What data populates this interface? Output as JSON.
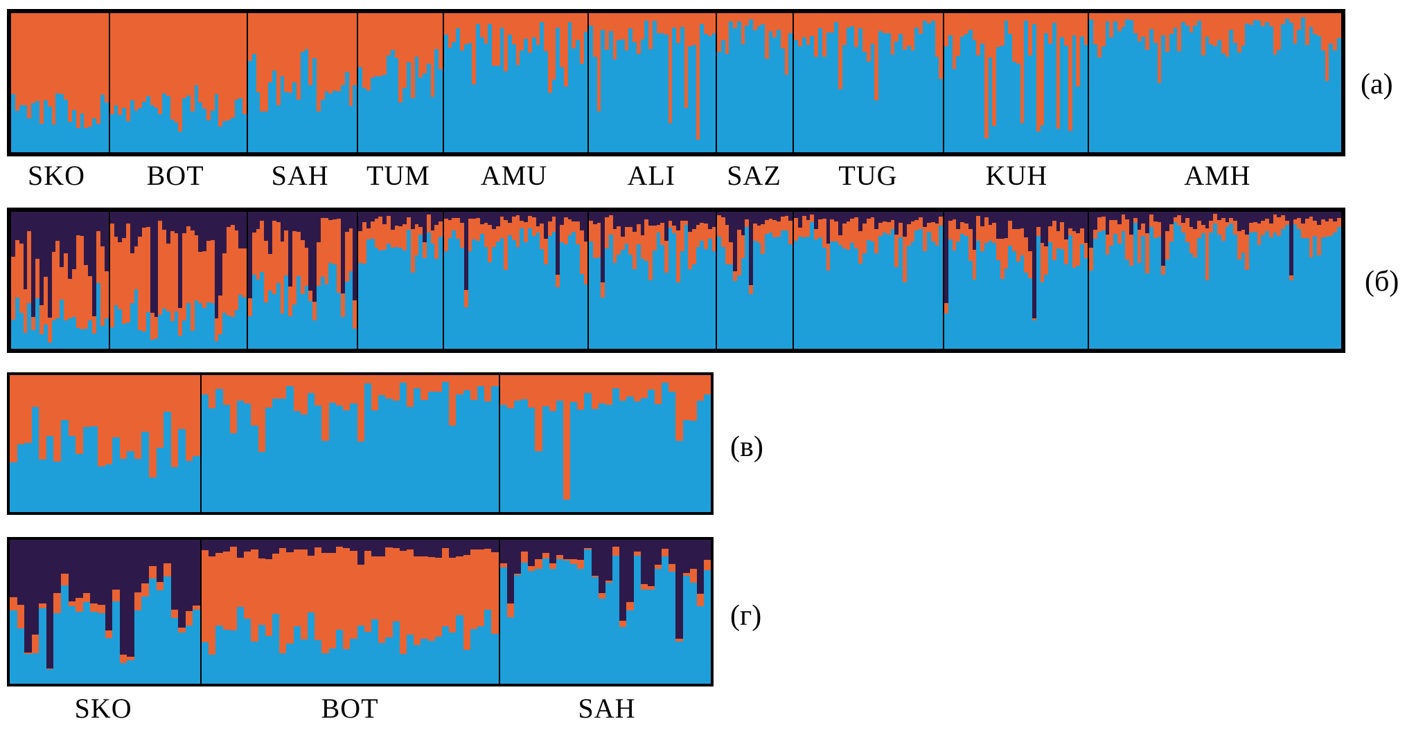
{
  "colors": {
    "orange": "#ea6332",
    "blue": "#1e9fd9",
    "purple": "#2e1a4a",
    "border": "#000000",
    "background": "#ffffff"
  },
  "chart_data": {
    "type": "bar",
    "subtype": "stacked-admixture-structure-plot",
    "title": "",
    "description": "STRUCTURE-style admixture plots: each vertical bar is one individual, segments are ancestry proportions. Panels (а) K=2 and (б) K=3 cover ten populations; panels (в) K=2 and (г) K=3 cover three populations.",
    "legend_position": "none",
    "grid": false,
    "ylim": [
      0,
      1
    ],
    "panels": [
      {
        "id": "a",
        "side_label": "(а)",
        "k": 2,
        "components": [
          "orange",
          "blue"
        ],
        "labels_below": true,
        "populations": [
          {
            "name": "SKO",
            "weight": 110,
            "n": 24,
            "seed": 101,
            "means": [
              0.72,
              0.28
            ],
            "noise": 0.45
          },
          {
            "name": "BOT",
            "weight": 154,
            "n": 34,
            "seed": 102,
            "means": [
              0.7,
              0.3
            ],
            "noise": 0.5
          },
          {
            "name": "SAH",
            "weight": 123,
            "n": 27,
            "seed": 103,
            "means": [
              0.52,
              0.48
            ],
            "noise": 0.6
          },
          {
            "name": "TUM",
            "weight": 95,
            "n": 21,
            "seed": 104,
            "means": [
              0.38,
              0.62
            ],
            "noise": 0.6
          },
          {
            "name": "AMU",
            "weight": 162,
            "n": 36,
            "seed": 105,
            "means": [
              0.22,
              0.78
            ],
            "noise": 0.7,
            "spike": {
              "comp": 0,
              "rate": 0.05,
              "amount": 0.55
            }
          },
          {
            "name": "ALI",
            "weight": 143,
            "n": 32,
            "seed": 106,
            "means": [
              0.17,
              0.83
            ],
            "noise": 0.7,
            "spike": {
              "comp": 0,
              "rate": 0.06,
              "amount": 0.8
            }
          },
          {
            "name": "SAZ",
            "weight": 85,
            "n": 19,
            "seed": 107,
            "means": [
              0.16,
              0.84
            ],
            "noise": 0.7
          },
          {
            "name": "TUG",
            "weight": 168,
            "n": 37,
            "seed": 108,
            "means": [
              0.18,
              0.82
            ],
            "noise": 0.7,
            "spike": {
              "comp": 0,
              "rate": 0.05,
              "amount": 0.6
            }
          },
          {
            "name": "KUH",
            "weight": 162,
            "n": 36,
            "seed": 109,
            "means": [
              0.22,
              0.78
            ],
            "noise": 0.7,
            "spike": {
              "comp": 0,
              "rate": 0.08,
              "amount": 0.85
            }
          },
          {
            "name": "AMH",
            "weight": 284,
            "n": 63,
            "seed": 110,
            "means": [
              0.12,
              0.88
            ],
            "noise": 0.7,
            "spike": {
              "comp": 0,
              "rate": 0.04,
              "amount": 0.5
            }
          }
        ]
      },
      {
        "id": "b",
        "side_label": "(б)",
        "k": 3,
        "components": [
          "purple",
          "orange",
          "blue"
        ],
        "labels_below": false,
        "populations": [
          {
            "name": "SKO",
            "weight": 110,
            "n": 24,
            "seed": 201,
            "means": [
              0.32,
              0.45,
              0.23
            ],
            "noise": 0.7,
            "spike": {
              "comp": 0,
              "rate": 0.2,
              "amount": 0.75
            }
          },
          {
            "name": "BOT",
            "weight": 154,
            "n": 34,
            "seed": 202,
            "means": [
              0.18,
              0.55,
              0.27
            ],
            "noise": 0.6,
            "spike": {
              "comp": 0,
              "rate": 0.18,
              "amount": 0.7
            }
          },
          {
            "name": "SAH",
            "weight": 123,
            "n": 27,
            "seed": 203,
            "means": [
              0.14,
              0.34,
              0.52
            ],
            "noise": 0.7,
            "spike": {
              "comp": 0,
              "rate": 0.1,
              "amount": 0.6
            }
          },
          {
            "name": "TUM",
            "weight": 95,
            "n": 21,
            "seed": 204,
            "means": [
              0.1,
              0.2,
              0.7
            ],
            "noise": 0.7,
            "spike": {
              "comp": 0,
              "rate": 0.08,
              "amount": 0.6
            }
          },
          {
            "name": "AMU",
            "weight": 162,
            "n": 36,
            "seed": 205,
            "means": [
              0.08,
              0.16,
              0.76
            ],
            "noise": 0.7,
            "spike": {
              "comp": 0,
              "rate": 0.06,
              "amount": 0.5
            }
          },
          {
            "name": "ALI",
            "weight": 143,
            "n": 32,
            "seed": 206,
            "means": [
              0.08,
              0.15,
              0.77
            ],
            "noise": 0.7,
            "spike": {
              "comp": 0,
              "rate": 0.05,
              "amount": 0.5
            }
          },
          {
            "name": "SAZ",
            "weight": 85,
            "n": 19,
            "seed": 207,
            "means": [
              0.08,
              0.14,
              0.78
            ],
            "noise": 0.7,
            "spike": {
              "comp": 0,
              "rate": 0.05,
              "amount": 0.5
            }
          },
          {
            "name": "TUG",
            "weight": 168,
            "n": 37,
            "seed": 208,
            "means": [
              0.08,
              0.15,
              0.77
            ],
            "noise": 0.7,
            "spike": {
              "comp": 0,
              "rate": 0.06,
              "amount": 0.5
            }
          },
          {
            "name": "KUH",
            "weight": 162,
            "n": 36,
            "seed": 209,
            "means": [
              0.12,
              0.18,
              0.7
            ],
            "noise": 0.7,
            "spike": {
              "comp": 0,
              "rate": 0.12,
              "amount": 0.7
            }
          },
          {
            "name": "AMH",
            "weight": 284,
            "n": 63,
            "seed": 210,
            "means": [
              0.07,
              0.12,
              0.81
            ],
            "noise": 0.7,
            "spike": {
              "comp": 0,
              "rate": 0.05,
              "amount": 0.45
            }
          }
        ]
      },
      {
        "id": "v",
        "side_label": "(в)",
        "k": 2,
        "components": [
          "orange",
          "blue"
        ],
        "labels_below": false,
        "populations": [
          {
            "name": "SKO",
            "weight": 215,
            "n": 26,
            "seed": 301,
            "means": [
              0.55,
              0.45
            ],
            "noise": 0.65
          },
          {
            "name": "BOT",
            "weight": 335,
            "n": 42,
            "seed": 302,
            "means": [
              0.16,
              0.84
            ],
            "noise": 0.7,
            "spike": {
              "comp": 0,
              "rate": 0.08,
              "amount": 0.5
            }
          },
          {
            "name": "SAH",
            "weight": 238,
            "n": 30,
            "seed": 303,
            "means": [
              0.2,
              0.8
            ],
            "noise": 0.7,
            "spike": {
              "comp": 0,
              "rate": 0.1,
              "amount": 0.9
            }
          }
        ]
      },
      {
        "id": "g",
        "side_label": "(г)",
        "k": 3,
        "components": [
          "purple",
          "orange",
          "blue"
        ],
        "labels_below": true,
        "populations": [
          {
            "name": "SKO",
            "weight": 215,
            "n": 26,
            "seed": 401,
            "means": [
              0.45,
              0.06,
              0.49
            ],
            "noise": 0.7,
            "spike": {
              "comp": 0,
              "rate": 0.25,
              "amount": 0.8
            }
          },
          {
            "name": "BOT",
            "weight": 335,
            "n": 42,
            "seed": 402,
            "means": [
              0.09,
              0.54,
              0.37
            ],
            "noise": 0.5
          },
          {
            "name": "SAH",
            "weight": 238,
            "n": 30,
            "seed": 403,
            "means": [
              0.15,
              0.04,
              0.81
            ],
            "noise": 0.8,
            "spike": {
              "comp": 0,
              "rate": 0.12,
              "amount": 0.6
            }
          }
        ]
      }
    ]
  }
}
